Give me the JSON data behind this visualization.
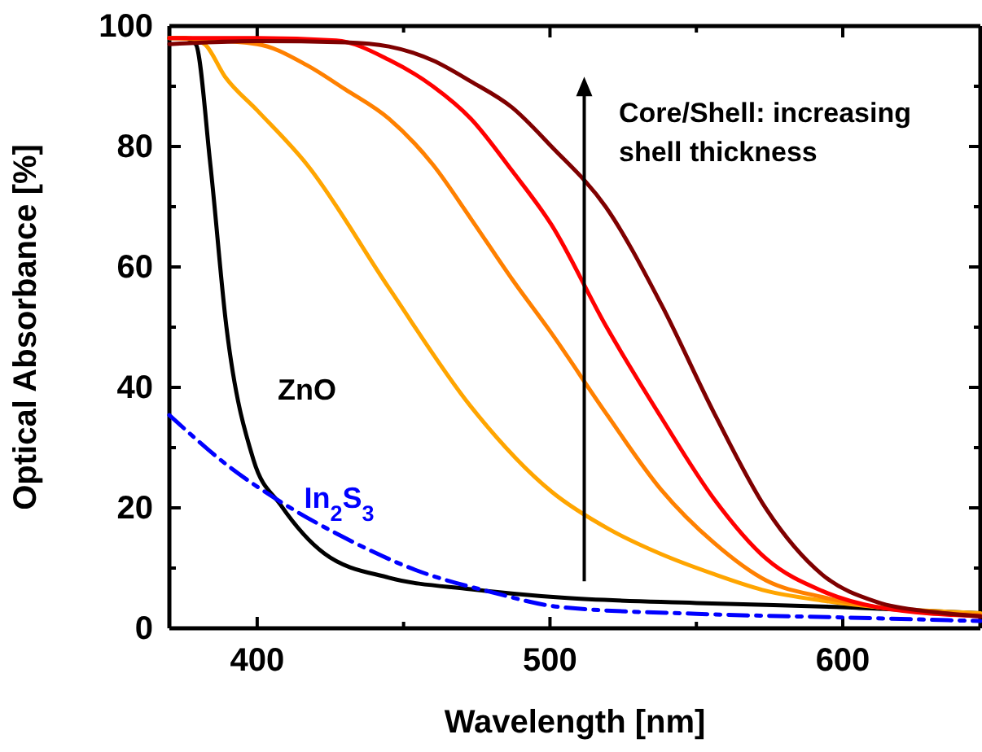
{
  "chart_data": {
    "type": "line",
    "xlabel": "Wavelength [nm]",
    "ylabel": "Optical Absorbance [%]",
    "xlim": [
      370,
      647
    ],
    "ylim": [
      0,
      100
    ],
    "xticks": [
      400,
      {
        "value": 450,
        "label": null
      },
      500,
      {
        "value": 550,
        "label": null
      },
      600
    ],
    "yticks": [
      0,
      {
        "value": 10,
        "label": null
      },
      20,
      {
        "value": 30,
        "label": null
      },
      40,
      {
        "value": 50,
        "label": null
      },
      60,
      {
        "value": 70,
        "label": null
      },
      80,
      {
        "value": 90,
        "label": null
      },
      100
    ],
    "grid": false,
    "legend": false,
    "marker": "none",
    "annotations": [
      "Core/Shell: increasing shell thickness"
    ],
    "series": [
      {
        "name": "ZnO",
        "color": "#000000",
        "line_style": "solid",
        "x": [
          370,
          375,
          379,
          384,
          389.5,
          398.7,
          408,
          423,
          445,
          473,
          504,
          550,
          600,
          647
        ],
        "values": [
          98,
          98,
          97,
          77,
          50,
          28,
          20.5,
          12.4,
          8.4,
          6.5,
          5.1,
          4.2,
          3.5,
          2.5
        ]
      },
      {
        "name": "In$_{2}$S$_{3}$",
        "color": "#0000ff",
        "line_style": "dashdot",
        "x": [
          370,
          390,
          408,
          430,
          454,
          480,
          504,
          550,
          600,
          647
        ],
        "values": [
          35.4,
          27,
          21,
          15,
          9.7,
          6,
          3.5,
          2.4,
          1.8,
          1.2
        ]
      },
      {
        "color": "#ffa500",
        "line_style": "solid",
        "x": [
          370,
          376,
          382,
          389,
          400,
          417,
          445,
          473,
          500.5,
          520,
          537.6,
          556,
          574,
          593,
          612,
          647
        ],
        "values": [
          98,
          98,
          97,
          91.6,
          86,
          77,
          56.5,
          36.8,
          22.7,
          16.5,
          12.4,
          9,
          6.2,
          4.6,
          3.5,
          2.5
        ]
      },
      {
        "color": "#ff8000",
        "line_style": "solid",
        "x": [
          370,
          400,
          417,
          430,
          445,
          460,
          473,
          487,
          500.5,
          519,
          538,
          556,
          574,
          593,
          612,
          647
        ],
        "values": [
          98,
          97,
          93.5,
          89.5,
          84.6,
          77,
          68,
          58,
          49,
          35.8,
          23,
          14.2,
          7.9,
          5.2,
          3.5,
          2.2
        ]
      },
      {
        "color": "#ff0000",
        "line_style": "solid",
        "x": [
          370,
          400,
          427,
          445,
          460,
          473,
          487,
          500.5,
          519,
          538,
          556,
          574,
          593,
          612,
          647
        ],
        "values": [
          98,
          98,
          97.6,
          94.4,
          90,
          84.6,
          76,
          67,
          50.3,
          35,
          21.5,
          11.5,
          6.2,
          3.5,
          2
        ]
      },
      {
        "color": "#7f0000",
        "line_style": "solid",
        "x": [
          370,
          400,
          430,
          445,
          460,
          473,
          487,
          500.5,
          519,
          538,
          556,
          574,
          593,
          612,
          631,
          647
        ],
        "values": [
          97,
          97.5,
          97.3,
          96.6,
          94.3,
          90.8,
          86.5,
          80,
          70,
          53.8,
          35.8,
          19.7,
          8.9,
          4.3,
          2.7,
          2
        ]
      }
    ]
  }
}
